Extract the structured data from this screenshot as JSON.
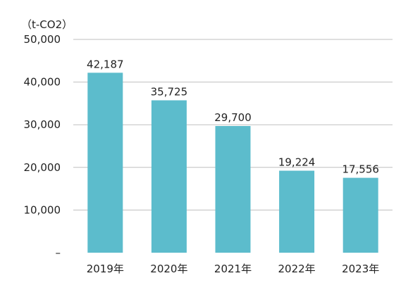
{
  "chart_data": {
    "type": "bar",
    "unit_label": "（t-CO2）",
    "categories": [
      "2019年",
      "2020年",
      "2021年",
      "2022年",
      "2023年"
    ],
    "values": [
      42187,
      35725,
      29700,
      19224,
      17556
    ],
    "value_labels": [
      "42,187",
      "35,725",
      "29,700",
      "19,224",
      "17,556"
    ],
    "y_tick_labels": [
      "–",
      "10,000",
      "20,000",
      "30,000",
      "40,000",
      "50,000"
    ],
    "ylim": [
      0,
      50000
    ],
    "y_ticks": [
      0,
      10000,
      20000,
      30000,
      40000,
      50000
    ],
    "grid": true,
    "legend": "none",
    "bar_color": "#5cbccc",
    "grid_color": "#bfbfbf"
  }
}
